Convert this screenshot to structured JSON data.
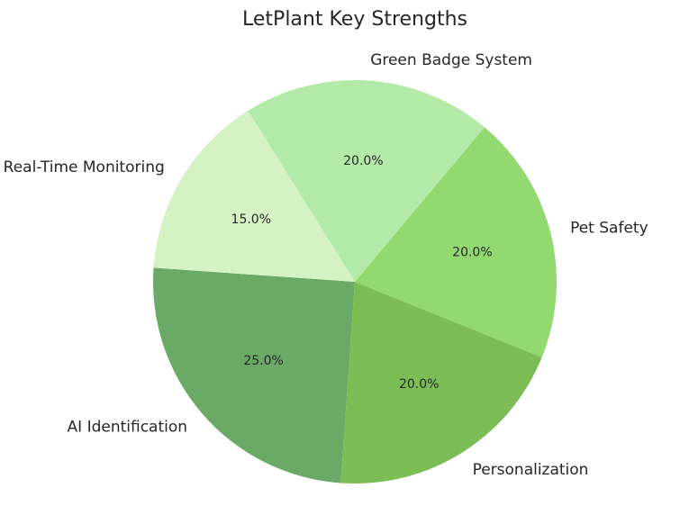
{
  "chart_data": {
    "type": "pie",
    "title": "LetPlant Key Strengths",
    "start_angle_deg": 176,
    "direction": "counterclockwise",
    "slices": [
      {
        "label": "AI Identification",
        "value": 25.0,
        "pct_text": "25.0%",
        "color": "#6aa966"
      },
      {
        "label": "Personalization",
        "value": 20.0,
        "pct_text": "20.0%",
        "color": "#7cbd56"
      },
      {
        "label": "Pet Safety",
        "value": 20.0,
        "pct_text": "20.0%",
        "color": "#92d970"
      },
      {
        "label": "Green Badge System",
        "value": 20.0,
        "pct_text": "20.0%",
        "color": "#b3eaa8"
      },
      {
        "label": "Real-Time Monitoring",
        "value": 15.0,
        "pct_text": "15.0%",
        "color": "#d4f2c4"
      }
    ]
  }
}
